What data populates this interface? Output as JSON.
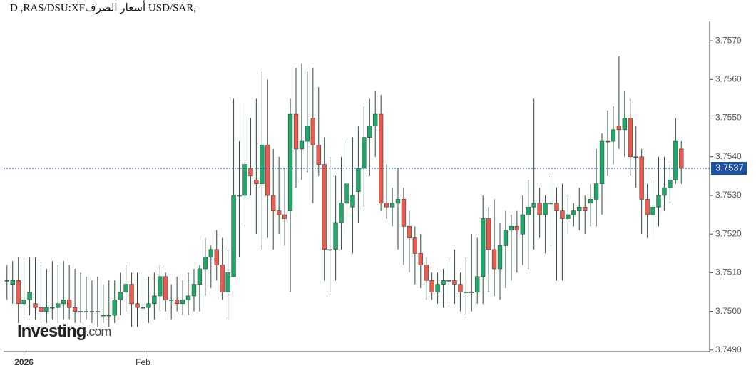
{
  "chart_data": {
    "type": "candlestick",
    "title": "D ,RAS/DSU:XFأسعار الصرف USD/SAR,",
    "watermark": {
      "main": "Investing",
      "suffix": ".com"
    },
    "up_color": "#20a86a",
    "down_color": "#ee5a50",
    "wick_color": "#2f4a3a",
    "last_price": {
      "value": 3.7537,
      "label": "3.7537",
      "color": "#1c4fa6"
    },
    "ylim": [
      3.74896,
      3.7575
    ],
    "yticks": [
      {
        "value": 3.749,
        "label": "3.7490"
      },
      {
        "value": 3.75,
        "label": "3.7500"
      },
      {
        "value": 3.751,
        "label": "3.7510"
      },
      {
        "value": 3.752,
        "label": "3.7520"
      },
      {
        "value": 3.753,
        "label": "3.7530"
      },
      {
        "value": 3.754,
        "label": "3.7540"
      },
      {
        "value": 3.755,
        "label": "3.7550"
      },
      {
        "value": 3.756,
        "label": "3.7560"
      },
      {
        "value": 3.757,
        "label": "3.7570"
      }
    ],
    "xlim": [
      -0.6,
      124
    ],
    "xticks": [
      {
        "value": 3,
        "label": "2026"
      },
      {
        "value": 24,
        "label": "Feb"
      }
    ],
    "values": [
      [
        3.7508,
        3.7512,
        3.7503,
        3.7508
      ],
      [
        3.7507,
        3.7513,
        3.7502,
        3.7508
      ],
      [
        3.7508,
        3.7514,
        3.7497,
        3.7502
      ],
      [
        3.7502,
        3.7513,
        3.7499,
        3.7503
      ],
      [
        3.7503,
        3.7514,
        3.7499,
        3.7505
      ],
      [
        3.7502,
        3.7514,
        3.7498,
        3.7501
      ],
      [
        3.7501,
        3.7512,
        3.7497,
        3.75
      ],
      [
        3.75,
        3.7511,
        3.7497,
        3.7501
      ],
      [
        3.7501,
        3.7513,
        3.7498,
        3.7501
      ],
      [
        3.7501,
        3.7512,
        3.7497,
        3.7502
      ],
      [
        3.7502,
        3.7513,
        3.7498,
        3.7503
      ],
      [
        3.7503,
        3.7512,
        3.7498,
        3.7501
      ],
      [
        3.7501,
        3.7511,
        3.7497,
        3.75
      ],
      [
        3.75,
        3.751,
        3.7497,
        3.75
      ],
      [
        3.75,
        3.7509,
        3.7498,
        3.75
      ],
      [
        3.75,
        3.7508,
        3.7497,
        3.75
      ],
      [
        3.75,
        3.7509,
        3.7496,
        3.75
      ],
      [
        3.7499,
        3.7507,
        3.7497,
        3.7499
      ],
      [
        3.7499,
        3.7508,
        3.7496,
        3.7499
      ],
      [
        3.7499,
        3.7508,
        3.7497,
        3.7503
      ],
      [
        3.7503,
        3.751,
        3.7499,
        3.7505
      ],
      [
        3.7505,
        3.7512,
        3.75,
        3.7507
      ],
      [
        3.7507,
        3.751,
        3.7496,
        3.7502
      ],
      [
        3.7502,
        3.751,
        3.7496,
        3.7501
      ],
      [
        3.7501,
        3.7509,
        3.7497,
        3.7501
      ],
      [
        3.7501,
        3.7509,
        3.7497,
        3.7502
      ],
      [
        3.7502,
        3.751,
        3.7498,
        3.7504
      ],
      [
        3.7504,
        3.7512,
        3.75,
        3.7509
      ],
      [
        3.7509,
        3.751,
        3.75,
        3.7503
      ],
      [
        3.7503,
        3.7507,
        3.7498,
        3.7503
      ],
      [
        3.7503,
        3.7509,
        3.75,
        3.7502
      ],
      [
        3.7502,
        3.7508,
        3.7499,
        3.7503
      ],
      [
        3.7503,
        3.751,
        3.7499,
        3.7504
      ],
      [
        3.7504,
        3.7511,
        3.75,
        3.7507
      ],
      [
        3.7507,
        3.7512,
        3.75,
        3.7511
      ],
      [
        3.7511,
        3.7519,
        3.7504,
        3.7514
      ],
      [
        3.7514,
        3.7517,
        3.7506,
        3.7516
      ],
      [
        3.7516,
        3.7521,
        3.7508,
        3.7512
      ],
      [
        3.7512,
        3.7519,
        3.7503,
        3.7505
      ],
      [
        3.7505,
        3.7516,
        3.7498,
        3.751
      ],
      [
        3.7509,
        3.7555,
        3.7509,
        3.753
      ],
      [
        3.753,
        3.7544,
        3.7514,
        3.753
      ],
      [
        3.753,
        3.7554,
        3.7522,
        3.7538
      ],
      [
        3.7537,
        3.755,
        3.753,
        3.7535
      ],
      [
        3.7534,
        3.7555,
        3.752,
        3.7533
      ],
      [
        3.7533,
        3.7562,
        3.7516,
        3.7543
      ],
      [
        3.7543,
        3.756,
        3.7519,
        3.753
      ],
      [
        3.753,
        3.7542,
        3.7516,
        3.7526
      ],
      [
        3.7526,
        3.754,
        3.752,
        3.7525
      ],
      [
        3.7525,
        3.7537,
        3.7517,
        3.7524
      ],
      [
        3.7526,
        3.7555,
        3.7505,
        3.7551
      ],
      [
        3.7551,
        3.7563,
        3.7532,
        3.7542
      ],
      [
        3.7542,
        3.7564,
        3.7534,
        3.7544
      ],
      [
        3.7544,
        3.7562,
        3.7536,
        3.7548
      ],
      [
        3.755,
        3.7563,
        3.7528,
        3.7543
      ],
      [
        3.7543,
        3.7558,
        3.7535,
        3.7538
      ],
      [
        3.7538,
        3.7545,
        3.7508,
        3.7516
      ],
      [
        3.7516,
        3.754,
        3.7505,
        3.7516
      ],
      [
        3.7516,
        3.7535,
        3.7508,
        3.7523
      ],
      [
        3.7523,
        3.754,
        3.7516,
        3.7528
      ],
      [
        3.7528,
        3.7544,
        3.752,
        3.7533
      ],
      [
        3.7527,
        3.7545,
        3.7515,
        3.753
      ],
      [
        3.7531,
        3.7548,
        3.7523,
        3.7537
      ],
      [
        3.7537,
        3.7553,
        3.7527,
        3.7545
      ],
      [
        3.7545,
        3.7555,
        3.7535,
        3.7548
      ],
      [
        3.7548,
        3.7557,
        3.754,
        3.7551
      ],
      [
        3.7551,
        3.7556,
        3.7526,
        3.7528
      ],
      [
        3.7528,
        3.7538,
        3.7524,
        3.7527
      ],
      [
        3.7527,
        3.7532,
        3.7522,
        3.7528
      ],
      [
        3.7528,
        3.7537,
        3.7516,
        3.7529
      ],
      [
        3.7529,
        3.7532,
        3.7512,
        3.7522
      ],
      [
        3.7522,
        3.7526,
        3.751,
        3.7519
      ],
      [
        3.7519,
        3.7522,
        3.7507,
        3.7515
      ],
      [
        3.7515,
        3.752,
        3.7506,
        3.7512
      ],
      [
        3.7512,
        3.7514,
        3.7503,
        3.7508
      ],
      [
        3.7508,
        3.751,
        3.7503,
        3.7505
      ],
      [
        3.7505,
        3.751,
        3.7502,
        3.7507
      ],
      [
        3.7507,
        3.7511,
        3.7501,
        3.7508
      ],
      [
        3.7508,
        3.7514,
        3.7502,
        3.7508
      ],
      [
        3.7508,
        3.7516,
        3.7502,
        3.7507
      ],
      [
        3.7507,
        3.751,
        3.75,
        3.7505
      ],
      [
        3.7505,
        3.7514,
        3.7499,
        3.7505
      ],
      [
        3.7505,
        3.752,
        3.75,
        3.7505
      ],
      [
        3.7505,
        3.7519,
        3.7502,
        3.7509
      ],
      [
        3.7509,
        3.753,
        3.7502,
        3.7524
      ],
      [
        3.7524,
        3.7527,
        3.7505,
        3.7516
      ],
      [
        3.7516,
        3.7529,
        3.7504,
        3.7511
      ],
      [
        3.7511,
        3.7523,
        3.7503,
        3.7517
      ],
      [
        3.7517,
        3.7526,
        3.7506,
        3.7521
      ],
      [
        3.7521,
        3.7525,
        3.7508,
        3.7522
      ],
      [
        3.7522,
        3.7526,
        3.751,
        3.7521
      ],
      [
        3.752,
        3.753,
        3.7512,
        3.7525
      ],
      [
        3.7525,
        3.7534,
        3.7511,
        3.7527
      ],
      [
        3.7527,
        3.7555,
        3.7516,
        3.7528
      ],
      [
        3.7528,
        3.7532,
        3.7519,
        3.7525
      ],
      [
        3.7525,
        3.753,
        3.7515,
        3.7528
      ],
      [
        3.7528,
        3.7535,
        3.7517,
        3.7528
      ],
      [
        3.7528,
        3.7532,
        3.7508,
        3.7526
      ],
      [
        3.7526,
        3.7533,
        3.7508,
        3.7524
      ],
      [
        3.7524,
        3.753,
        3.752,
        3.7525
      ],
      [
        3.7525,
        3.7528,
        3.7522,
        3.7526
      ],
      [
        3.7526,
        3.7532,
        3.7521,
        3.7527
      ],
      [
        3.7527,
        3.753,
        3.752,
        3.7526
      ],
      [
        3.7528,
        3.7533,
        3.7522,
        3.7529
      ],
      [
        3.7529,
        3.7542,
        3.7522,
        3.7533
      ],
      [
        3.7533,
        3.7546,
        3.7525,
        3.7544
      ],
      [
        3.7544,
        3.7552,
        3.7535,
        3.7544
      ],
      [
        3.7544,
        3.7553,
        3.7538,
        3.7547
      ],
      [
        3.7548,
        3.7566,
        3.7542,
        3.7547
      ],
      [
        3.7547,
        3.7557,
        3.754,
        3.755
      ],
      [
        3.755,
        3.7555,
        3.7535,
        3.754
      ],
      [
        3.754,
        3.7548,
        3.7532,
        3.754
      ],
      [
        3.754,
        3.7542,
        3.752,
        3.7529
      ],
      [
        3.7529,
        3.7533,
        3.7519,
        3.7525
      ],
      [
        3.7525,
        3.7534,
        3.752,
        3.7527
      ],
      [
        3.7527,
        3.754,
        3.7522,
        3.753
      ],
      [
        3.753,
        3.754,
        3.7526,
        3.7532
      ],
      [
        3.7532,
        3.7538,
        3.7528,
        3.7534
      ],
      [
        3.7534,
        3.755,
        3.7533,
        3.7544
      ],
      [
        3.7542,
        3.7544,
        3.7533,
        3.7537
      ]
    ]
  }
}
